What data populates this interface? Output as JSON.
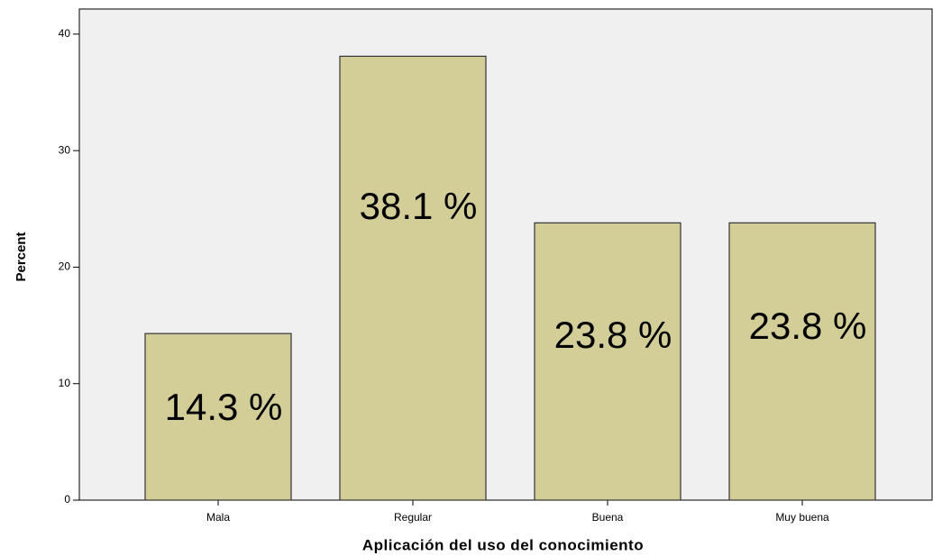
{
  "chart_data": {
    "type": "bar",
    "x_label": "Aplicación del uso del conocimiento",
    "y_label": "Percent",
    "categories": [
      "Mala",
      "Regular",
      "Buena",
      "Muy buena"
    ],
    "values": [
      14.3,
      38.1,
      23.8,
      23.8
    ],
    "value_labels": [
      "14.3 %",
      "38.1 %",
      "23.8 %",
      "23.8 %"
    ],
    "color": "#d3ce97",
    "ylim": [
      0,
      42
    ],
    "yticks": [
      0,
      10,
      20,
      30,
      40
    ],
    "grid": false
  }
}
